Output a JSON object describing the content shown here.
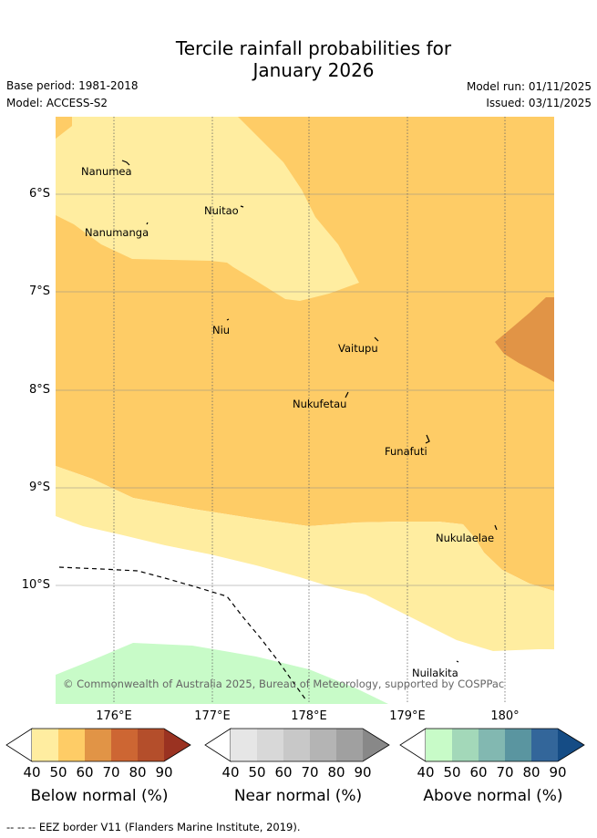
{
  "title": {
    "line1": "Tercile rainfall probabilities for",
    "line2": "January 2026"
  },
  "meta": {
    "base_period": "Base period: 1981-2018",
    "model": "Model: ACCESS-S2",
    "model_run": "Model run: 01/11/2025",
    "issued": "Issued: 03/11/2025"
  },
  "map": {
    "latitude_labels": [
      "6°S",
      "7°S",
      "8°S",
      "9°S",
      "10°S"
    ],
    "longitude_labels": [
      "176°E",
      "177°E",
      "178°E",
      "179°E",
      "180°"
    ],
    "places": [
      "Nanumea",
      "Nuitao",
      "Nanumanga",
      "Niu",
      "Vaitupu",
      "Nukufetau",
      "Funafuti",
      "Nukulaelae",
      "Nuilakita"
    ],
    "copyright": "© Commonwealth of Australia 2025, Bureau of Meteorology, supported by COSPPac",
    "colors": {
      "below_40_50": "#ffeda0",
      "below_50_60": "#fecc66",
      "below_60_70": "#e19446",
      "above_40_50": "#c8fbc8",
      "eez_border": "#000000"
    }
  },
  "colorbars": [
    {
      "title": "Below normal (%)",
      "ticks": [
        "40",
        "50",
        "60",
        "70",
        "80",
        "90"
      ],
      "colors": [
        "#ffeda0",
        "#fecc66",
        "#e19446",
        "#cd6633",
        "#b44e2b",
        "#9a3221"
      ]
    },
    {
      "title": "Near normal (%)",
      "ticks": [
        "40",
        "50",
        "60",
        "70",
        "80",
        "90"
      ],
      "colors": [
        "#e6e6e6",
        "#d8d8d8",
        "#c8c8c8",
        "#b4b4b4",
        "#a0a0a0",
        "#888888"
      ]
    },
    {
      "title": "Above normal (%)",
      "ticks": [
        "40",
        "50",
        "60",
        "70",
        "80",
        "90"
      ],
      "colors": [
        "#c8fbc8",
        "#a3d8b9",
        "#82b8b1",
        "#5a95a0",
        "#33669a",
        "#154c85"
      ]
    }
  ],
  "footnote": "--  --  -- EEZ border V11 (Flanders Marine Institute, 2019)."
}
